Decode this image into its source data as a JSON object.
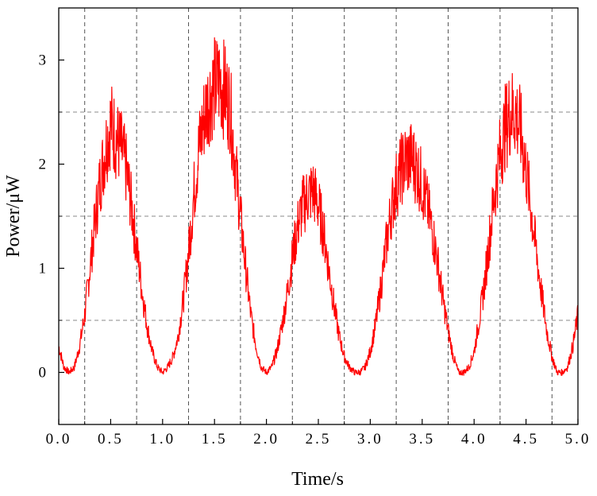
{
  "chart_data": {
    "type": "line",
    "title": "",
    "xlabel": "Time/s",
    "ylabel": "Power/μW",
    "xlim": [
      0.0,
      5.0
    ],
    "ylim": [
      -0.5,
      3.5
    ],
    "grid": "dashed",
    "legend": "none",
    "colors": {
      "line": "#ff0000",
      "axis": "#000000",
      "grid_v": "#555555",
      "grid_h": "#888888"
    },
    "x_ticks": [
      {
        "value": 0.0,
        "label": "0.0"
      },
      {
        "value": 0.5,
        "label": "0.5"
      },
      {
        "value": 1.0,
        "label": "1.0"
      },
      {
        "value": 1.5,
        "label": "1.5"
      },
      {
        "value": 2.0,
        "label": "2.0"
      },
      {
        "value": 2.5,
        "label": "2.5"
      },
      {
        "value": 3.0,
        "label": "3.0"
      },
      {
        "value": 3.5,
        "label": "3.5"
      },
      {
        "value": 4.0,
        "label": "4.0"
      },
      {
        "value": 4.5,
        "label": "4.5"
      },
      {
        "value": 5.0,
        "label": "5.0"
      }
    ],
    "y_ticks": [
      {
        "value": 0,
        "label": "0"
      },
      {
        "value": 1,
        "label": "1"
      },
      {
        "value": 2,
        "label": "2"
      },
      {
        "value": 3,
        "label": "3"
      }
    ],
    "vgrid_x": [
      0.25,
      0.75,
      1.25,
      1.75,
      2.25,
      2.75,
      3.25,
      3.75,
      4.25,
      4.75
    ],
    "hgrid_y": [
      0.5,
      1.5,
      2.5
    ],
    "series": [
      {
        "x": [
          0.0,
          0.05,
          0.1,
          0.15,
          0.2,
          0.25,
          0.3,
          0.35,
          0.4,
          0.45,
          0.5,
          0.55,
          0.6,
          0.65,
          0.7,
          0.75,
          0.8,
          0.85,
          0.9,
          0.95,
          1.0,
          1.05,
          1.1,
          1.15,
          1.2,
          1.25,
          1.3,
          1.35,
          1.4,
          1.45,
          1.5,
          1.55,
          1.6,
          1.65,
          1.7,
          1.75,
          1.8,
          1.85,
          1.9,
          1.95,
          2.0,
          2.05,
          2.1,
          2.15,
          2.2,
          2.25,
          2.3,
          2.35,
          2.4,
          2.45,
          2.5,
          2.55,
          2.6,
          2.65,
          2.7,
          2.75,
          2.8,
          2.85,
          2.9,
          2.95,
          3.0,
          3.05,
          3.1,
          3.15,
          3.2,
          3.25,
          3.3,
          3.35,
          3.4,
          3.45,
          3.5,
          3.55,
          3.6,
          3.65,
          3.7,
          3.75,
          3.8,
          3.85,
          3.9,
          3.95,
          4.0,
          4.05,
          4.1,
          4.15,
          4.2,
          4.25,
          4.3,
          4.35,
          4.4,
          4.45,
          4.5,
          4.55,
          4.6,
          4.65,
          4.7,
          4.75,
          4.8,
          4.85,
          4.9,
          4.95,
          5.0
        ],
        "y": [
          0.25,
          0.05,
          0.0,
          0.05,
          0.25,
          0.55,
          1.0,
          1.45,
          1.85,
          2.15,
          2.4,
          2.25,
          2.15,
          1.95,
          1.6,
          1.2,
          0.8,
          0.45,
          0.2,
          0.05,
          0.0,
          0.05,
          0.15,
          0.35,
          0.7,
          1.15,
          1.7,
          2.15,
          2.45,
          2.65,
          2.75,
          2.8,
          2.7,
          2.55,
          2.0,
          1.5,
          1.0,
          0.55,
          0.25,
          0.05,
          0.0,
          0.05,
          0.2,
          0.45,
          0.75,
          1.1,
          1.4,
          1.6,
          1.7,
          1.75,
          1.6,
          1.35,
          1.0,
          0.65,
          0.35,
          0.15,
          0.05,
          0.0,
          0.0,
          0.05,
          0.2,
          0.45,
          0.8,
          1.2,
          1.55,
          1.8,
          1.95,
          2.05,
          2.05,
          1.95,
          1.8,
          1.6,
          1.35,
          1.05,
          0.7,
          0.4,
          0.15,
          0.0,
          0.0,
          0.05,
          0.2,
          0.5,
          0.85,
          1.3,
          1.75,
          2.1,
          2.35,
          2.5,
          2.5,
          2.3,
          1.95,
          1.55,
          1.15,
          0.75,
          0.4,
          0.15,
          0.0,
          0.0,
          0.05,
          0.25,
          0.55
        ]
      }
    ]
  }
}
